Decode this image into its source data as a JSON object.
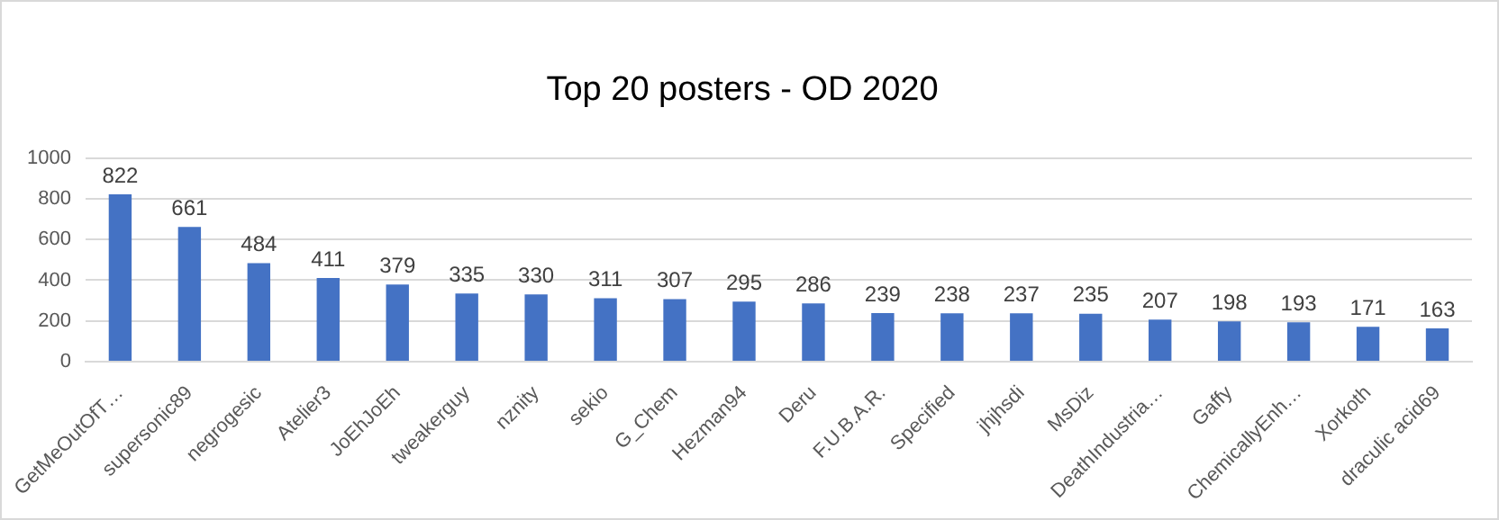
{
  "chart_data": {
    "type": "bar",
    "title": "Top 20 posters - OD 2020",
    "categories": [
      "GetMeOutOfT…",
      "supersonic89",
      "negrogesic",
      "Atelier3",
      "JoEhJoEh",
      "tweakerguy",
      "nznity",
      "sekio",
      "G_Chem",
      "Hezman94",
      "Deru",
      "F.U.B.A.R.",
      "Specified",
      "jhjhsdi",
      "MsDiz",
      "DeathIndustria…",
      "Gaffy",
      "ChemicallyEnh…",
      "Xorkoth",
      "draculic acid69"
    ],
    "values": [
      822,
      661,
      484,
      411,
      379,
      335,
      330,
      311,
      307,
      295,
      286,
      239,
      238,
      237,
      235,
      207,
      198,
      193,
      171,
      163
    ],
    "color": "#4472c4",
    "ylim": [
      0,
      1000
    ],
    "yticks": [
      0,
      200,
      400,
      600,
      800,
      1000
    ],
    "grid": "y",
    "data_labels": true
  }
}
